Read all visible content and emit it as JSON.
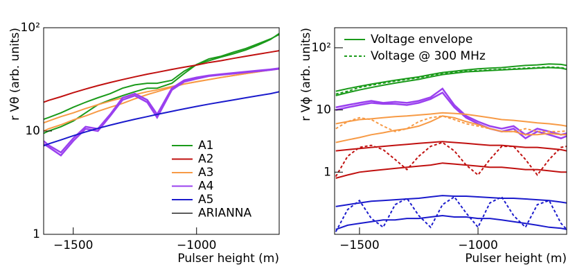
{
  "chart_data": [
    {
      "type": "line",
      "log_y": true,
      "xlabel": "Pulser height (m)",
      "ylabel": "r Vθ (arb. units)",
      "xlim": [
        -1620,
        -665
      ],
      "ylim": [
        1,
        100
      ],
      "xticks": [
        {
          "value": -1500,
          "label": "−1500"
        },
        {
          "value": -1000,
          "label": "−1000"
        }
      ],
      "yticks": [
        1,
        10,
        {
          "value": 100,
          "label": "10²"
        }
      ],
      "legend": "lower-right",
      "x": [
        -1620,
        -1600,
        -1550,
        -1500,
        -1450,
        -1400,
        -1350,
        -1300,
        -1250,
        -1200,
        -1160,
        -1100,
        -1050,
        -1000,
        -950,
        -900,
        -850,
        -800,
        -750,
        -700,
        -665
      ],
      "series": [
        {
          "name": "A1",
          "color": "#1a9a1a",
          "lines": [
            [
              13,
              13.5,
              15,
              17,
              19,
              21,
              23,
              26,
              28,
              29,
              29,
              31,
              38,
              44,
              50,
              53,
              58,
              63,
              70,
              78,
              86
            ],
            [
              9.5,
              10,
              11,
              12.5,
              15,
              18,
              20,
              22,
              24,
              26,
              26,
              29,
              36,
              44,
              48,
              52,
              56,
              61,
              68,
              77,
              88
            ]
          ]
        },
        {
          "name": "A2",
          "color": "#c0100f",
          "lines": [
            [
              19,
              19.8,
              21.5,
              23.5,
              25.5,
              27.5,
              29.5,
              31.5,
              33.5,
              35.5,
              37,
              39.5,
              41.5,
              43.5,
              46,
              48,
              50.5,
              53,
              55.5,
              58,
              60
            ]
          ]
        },
        {
          "name": "A3",
          "color": "#f79a45",
          "lines": [
            [
              12,
              12.5,
              13.8,
              15,
              16.5,
              18,
              19.5,
              21,
              22.5,
              24,
              25,
              27,
              28.5,
              30,
              31.5,
              33,
              34.5,
              36,
              37.5,
              39,
              40
            ],
            [
              10,
              10.5,
              11.5,
              12.8,
              14,
              15.5,
              17,
              18.5,
              20.5,
              22.5,
              24,
              26.5,
              28.5,
              30,
              31.5,
              33,
              34.5,
              36,
              37.5,
              39,
              40
            ]
          ]
        },
        {
          "name": "A4",
          "color": "#9a40ef",
          "lines": [
            [
              7.5,
              7,
              5.8,
              8,
              10.5,
              10,
              14,
              20,
              22,
              19,
              13.5,
              25,
              30,
              32,
              34,
              35,
              36,
              37,
              38,
              39,
              40
            ],
            [
              8,
              7.3,
              6.2,
              8.5,
              11,
              10.5,
              14.5,
              21,
              23,
              20,
              14.5,
              26,
              31,
              33,
              34.5,
              35.5,
              36.5,
              37.5,
              38.5,
              39.5,
              40.5
            ]
          ]
        },
        {
          "name": "A5",
          "color": "#1a1acc",
          "lines": [
            [
              7.2,
              7.5,
              8.2,
              9,
              9.8,
              10.6,
              11.4,
              12.2,
              13,
              13.8,
              14.5,
              15.5,
              16.4,
              17.3,
              18.2,
              19.1,
              20,
              21,
              22,
              23,
              24
            ]
          ]
        }
      ],
      "legend_extra": {
        "name": "ARIANNA",
        "color": "#000000"
      }
    },
    {
      "type": "line",
      "log_y": true,
      "xlabel": "Pulser height (m)",
      "ylabel": "r Vϕ (arb. units)",
      "xlim": [
        -1605,
        -626
      ],
      "ylim": [
        0.1,
        210
      ],
      "xticks": [
        {
          "value": -1500,
          "label": "−1500"
        },
        {
          "value": -1000,
          "label": "−1000"
        }
      ],
      "yticks": [
        1,
        10,
        {
          "value": 100,
          "label": "10²"
        }
      ],
      "legend": "upper-left",
      "legend_entries": [
        {
          "name": "Voltage envelope",
          "color": "#1a9a1a",
          "dash": false
        },
        {
          "name": "Voltage @ 300 MHz",
          "color": "#1a9a1a",
          "dash": true
        }
      ],
      "x": [
        -1600,
        -1550,
        -1500,
        -1450,
        -1400,
        -1350,
        -1300,
        -1250,
        -1200,
        -1150,
        -1100,
        -1050,
        -1000,
        -950,
        -900,
        -850,
        -800,
        -750,
        -700,
        -650,
        -626
      ],
      "series": [
        {
          "color": "#1a9a1a",
          "lines": [
            [
              20,
              22,
              24,
              26,
              28,
              30,
              32,
              34,
              37,
              40,
              42,
              44,
              46,
              47,
              48,
              50,
              52,
              53,
              55,
              54,
              52
            ],
            [
              17,
              19,
              21,
              23,
              25,
              27,
              29,
              31,
              34,
              37,
              39,
              41,
              42,
              43,
              44,
              45,
              46,
              47,
              48,
              47,
              45
            ]
          ],
          "dashed": [
            18,
            20,
            23,
            25,
            27,
            29,
            31,
            33,
            36,
            39,
            40,
            42,
            43,
            44,
            45,
            46,
            47,
            48,
            49,
            48,
            46
          ]
        },
        {
          "color": "#9a40ef",
          "lines": [
            [
              11,
              12,
              13,
              14,
              13,
              13.5,
              13,
              14,
              16,
              22,
              12,
              8,
              6.5,
              5.5,
              5,
              5.5,
              4,
              5,
              4.5,
              4,
              4.2
            ],
            [
              10,
              11,
              12,
              13,
              12.5,
              12.5,
              12,
              13,
              15,
              19,
              11,
              7.5,
              6,
              5,
              4.5,
              5,
              3.5,
              4.5,
              4,
              3.5,
              3.8
            ]
          ]
        },
        {
          "color": "#f79a45",
          "lines": [
            [
              6,
              6.5,
              7,
              7.2,
              7.5,
              7.8,
              8,
              8.3,
              8.6,
              9,
              8.8,
              8.5,
              8,
              7.5,
              7,
              6.8,
              6.5,
              6.2,
              6,
              5.7,
              5.5
            ],
            [
              3,
              3.3,
              3.6,
              4,
              4.3,
              4.7,
              5,
              5.5,
              6.5,
              8,
              7.5,
              6.5,
              5.8,
              5,
              4.5,
              4.5,
              4,
              4,
              4.2,
              4,
              4
            ]
          ],
          "dashed": [
            5,
            6.5,
            7.5,
            7,
            5.5,
            4.5,
            5,
            6.5,
            7.5,
            8,
            7,
            6,
            5.5,
            5,
            4.5,
            4.5,
            5,
            4.5,
            4.5,
            4.5,
            4.6
          ]
        },
        {
          "color": "#c0100f",
          "lines": [
            [
              2.2,
              2.3,
              2.4,
              2.5,
              2.6,
              2.7,
              2.8,
              2.9,
              3,
              3.1,
              3,
              2.9,
              2.8,
              2.7,
              2.7,
              2.6,
              2.5,
              2.5,
              2.4,
              2.3,
              2.2
            ],
            [
              0.8,
              0.9,
              1,
              1.05,
              1.1,
              1.15,
              1.2,
              1.25,
              1.3,
              1.4,
              1.35,
              1.3,
              1.25,
              1.2,
              1.2,
              1.15,
              1.1,
              1.1,
              1.05,
              1,
              1
            ]
          ],
          "dashed": [
            0.85,
            1.8,
            2.5,
            2.7,
            2.3,
            1.6,
            1.1,
            1.8,
            2.6,
            3,
            2.2,
            1.3,
            0.9,
            1.6,
            2.6,
            2.6,
            1.6,
            0.9,
            1.6,
            2.5,
            2.6
          ]
        },
        {
          "color": "#1a1acc",
          "lines": [
            [
              0.28,
              0.3,
              0.32,
              0.34,
              0.35,
              0.36,
              0.37,
              0.38,
              0.4,
              0.42,
              0.41,
              0.41,
              0.4,
              0.39,
              0.38,
              0.38,
              0.37,
              0.36,
              0.35,
              0.33,
              0.32
            ],
            [
              0.12,
              0.14,
              0.15,
              0.16,
              0.17,
              0.17,
              0.18,
              0.18,
              0.19,
              0.2,
              0.19,
              0.19,
              0.18,
              0.18,
              0.17,
              0.16,
              0.15,
              0.14,
              0.13,
              0.125,
              0.12
            ]
          ],
          "dashed": [
            0.11,
            0.25,
            0.35,
            0.18,
            0.13,
            0.3,
            0.38,
            0.2,
            0.13,
            0.3,
            0.4,
            0.22,
            0.13,
            0.32,
            0.4,
            0.2,
            0.13,
            0.3,
            0.35,
            0.15,
            0.12
          ]
        }
      ]
    }
  ]
}
